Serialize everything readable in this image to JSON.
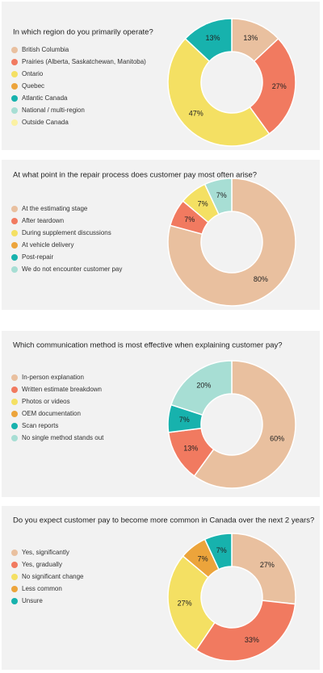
{
  "chart_data": [
    {
      "type": "pie",
      "title": "In which region do you primarily operate?",
      "categories": [
        "British Columbia",
        "Prairies (Alberta, Saskatchewan, Manitoba)",
        "Ontario",
        "Quebec",
        "Atlantic Canada",
        "National / multi-region",
        "Outside Canada"
      ],
      "values": [
        13,
        27,
        47,
        0,
        13,
        0,
        0
      ],
      "value_labels": [
        "13%",
        "27%",
        "47%",
        null,
        "13%",
        null,
        null
      ],
      "colors": [
        "#e9c09f",
        "#f17a60",
        "#f4e063",
        "#eca43b",
        "#17b2ad",
        "#a7ded4",
        "#fbf1a3"
      ]
    },
    {
      "type": "pie",
      "title": "At what point in the repair process does customer pay most often arise?",
      "categories": [
        "At the estimating stage",
        "After teardown",
        "During supplement discussions",
        "At vehicle delivery",
        "Post-repair",
        "We do not encounter customer pay"
      ],
      "values": [
        80,
        7,
        7,
        0,
        0,
        7
      ],
      "value_labels": [
        "80%",
        "7%",
        "7%",
        null,
        null,
        "7%"
      ],
      "colors": [
        "#e9c09f",
        "#f17a60",
        "#f4e063",
        "#eca43b",
        "#17b2ad",
        "#a7ded4"
      ]
    },
    {
      "type": "pie",
      "title": "Which communication method is most effective when explaining customer pay?",
      "categories": [
        "In-person explanation",
        "Written estimate breakdown",
        "Photos or videos",
        "OEM documentation",
        "Scan reports",
        "No single method stands out"
      ],
      "values": [
        60,
        13,
        0,
        0,
        7,
        20
      ],
      "value_labels": [
        "60%",
        "13%",
        null,
        null,
        "7%",
        "20%"
      ],
      "colors": [
        "#e9c09f",
        "#f17a60",
        "#f4e063",
        "#eca43b",
        "#17b2ad",
        "#a7ded4"
      ]
    },
    {
      "type": "pie",
      "title": "Do you expect customer pay to become more common in Canada over the next 2 years?",
      "categories": [
        "Yes, significantly",
        "Yes, gradually",
        "No significant change",
        "Less common",
        "Unsure"
      ],
      "values": [
        27,
        33,
        27,
        7,
        7
      ],
      "value_labels": [
        "27%",
        "33%",
        "27%",
        "7%",
        "7%"
      ],
      "colors": [
        "#e9c09f",
        "#f17a60",
        "#f4e063",
        "#eca43b",
        "#17b2ad"
      ]
    }
  ]
}
